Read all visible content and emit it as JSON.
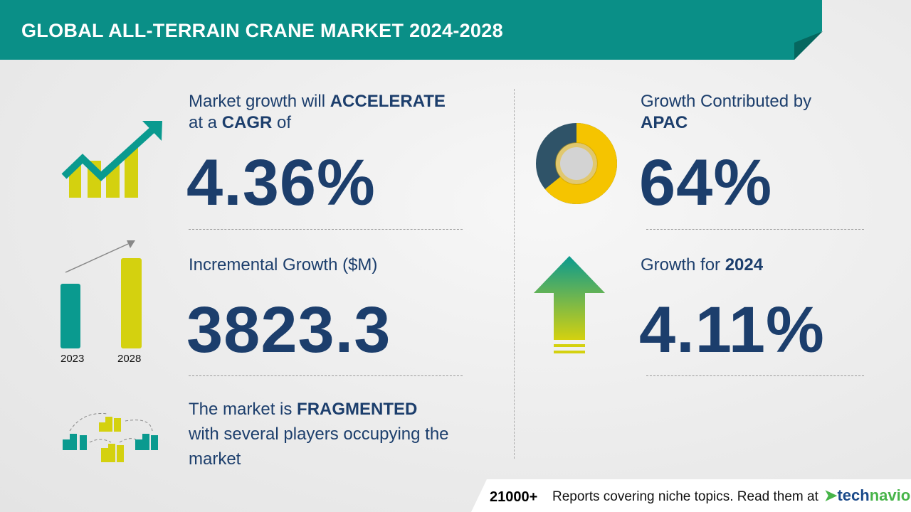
{
  "header": {
    "title": "GLOBAL ALL-TERRAIN CRANE MARKET 2024-2028"
  },
  "cagr": {
    "line1_pre": "Market growth will ",
    "line1_bold": "ACCELERATE",
    "line2_pre": "at a ",
    "line2_bold": "CAGR",
    "line2_post": " of",
    "value": "4.36%"
  },
  "incremental": {
    "label": "Incremental Growth ($M)",
    "value": "3823.3",
    "years": [
      "2023",
      "2028"
    ]
  },
  "fragmented": {
    "pre": "The market is ",
    "bold": "FRAGMENTED",
    "rest": "with several players occupying the market"
  },
  "region": {
    "label": "Growth Contributed by",
    "region": "APAC",
    "value": "64%",
    "share": 64
  },
  "growth_year": {
    "label": "Growth for ",
    "year": "2024",
    "value": "4.11%"
  },
  "footer": {
    "count": "21000+",
    "text": "Reports covering niche topics. Read them at",
    "logo": "technavio"
  },
  "colors": {
    "teal": "#0a8f87",
    "yellow": "#d4d10f",
    "navy": "#1c3e6c",
    "donut_main": "#f5c400",
    "donut_rest": "#2f5368"
  }
}
